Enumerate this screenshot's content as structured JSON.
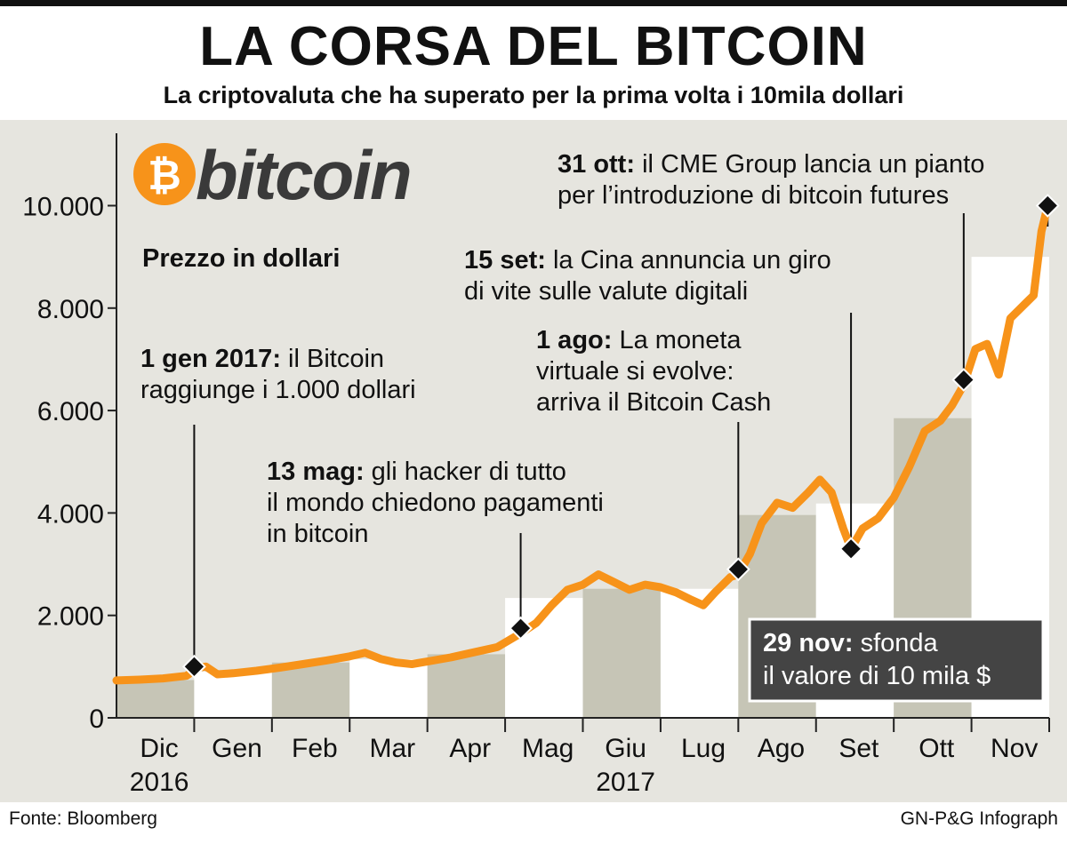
{
  "header": {
    "title": "LA CORSA DEL BITCOIN",
    "subtitle": "La criptovaluta che ha superato per la prima volta i 10mila dollari"
  },
  "logo": {
    "symbol": "₿",
    "word": "bitcoin",
    "color": "#F7931A"
  },
  "price_label": "Prezzo in dollari",
  "footer": {
    "source": "Fonte: Bloomberg",
    "credit": "GN-P&G Infograph"
  },
  "colors": {
    "line": "#F7931A",
    "background": "#E6E5DF",
    "band_dark": "#C6C5B6",
    "band_light": "#FFFFFF",
    "callout": "#444444"
  },
  "chart_data": {
    "type": "line",
    "title": "LA CORSA DEL BITCOIN",
    "ylabel": "Prezzo in dollari",
    "ylim": [
      0,
      11500
    ],
    "yticks": [
      0,
      2000,
      4000,
      6000,
      8000,
      10000
    ],
    "ytick_labels": [
      "0",
      "2.000",
      "4.000",
      "6.000",
      "8.000",
      "10.000"
    ],
    "xlim": [
      0,
      12
    ],
    "months": [
      {
        "label": "Dic",
        "year": "2016"
      },
      {
        "label": "Gen",
        "year": ""
      },
      {
        "label": "Feb",
        "year": ""
      },
      {
        "label": "Mar",
        "year": ""
      },
      {
        "label": "Apr",
        "year": ""
      },
      {
        "label": "Mag",
        "year": ""
      },
      {
        "label": "Giu",
        "year": "2017"
      },
      {
        "label": "Lug",
        "year": ""
      },
      {
        "label": "Ago",
        "year": ""
      },
      {
        "label": "Set",
        "year": ""
      },
      {
        "label": "Ott",
        "year": ""
      },
      {
        "label": "Nov",
        "year": ""
      }
    ],
    "series": [
      {
        "points": [
          [
            0.0,
            730
          ],
          [
            0.3,
            745
          ],
          [
            0.6,
            770
          ],
          [
            0.9,
            820
          ],
          [
            1.05,
            980
          ],
          [
            1.15,
            1000
          ],
          [
            1.3,
            850
          ],
          [
            1.5,
            870
          ],
          [
            1.8,
            920
          ],
          [
            2.1,
            980
          ],
          [
            2.4,
            1050
          ],
          [
            2.7,
            1120
          ],
          [
            3.0,
            1200
          ],
          [
            3.2,
            1270
          ],
          [
            3.4,
            1150
          ],
          [
            3.6,
            1080
          ],
          [
            3.8,
            1050
          ],
          [
            4.0,
            1100
          ],
          [
            4.3,
            1180
          ],
          [
            4.6,
            1280
          ],
          [
            4.9,
            1380
          ],
          [
            5.2,
            1650
          ],
          [
            5.4,
            1850
          ],
          [
            5.6,
            2200
          ],
          [
            5.8,
            2500
          ],
          [
            6.0,
            2600
          ],
          [
            6.2,
            2800
          ],
          [
            6.4,
            2650
          ],
          [
            6.6,
            2500
          ],
          [
            6.8,
            2600
          ],
          [
            7.0,
            2550
          ],
          [
            7.2,
            2450
          ],
          [
            7.4,
            2300
          ],
          [
            7.55,
            2200
          ],
          [
            7.7,
            2450
          ],
          [
            7.9,
            2750
          ],
          [
            8.0,
            2800
          ],
          [
            8.15,
            3200
          ],
          [
            8.3,
            3800
          ],
          [
            8.5,
            4200
          ],
          [
            8.7,
            4100
          ],
          [
            8.9,
            4400
          ],
          [
            9.05,
            4650
          ],
          [
            9.2,
            4400
          ],
          [
            9.35,
            3700
          ],
          [
            9.45,
            3300
          ],
          [
            9.6,
            3700
          ],
          [
            9.8,
            3900
          ],
          [
            10.0,
            4300
          ],
          [
            10.2,
            4900
          ],
          [
            10.4,
            5600
          ],
          [
            10.6,
            5800
          ],
          [
            10.75,
            6100
          ],
          [
            10.9,
            6500
          ],
          [
            11.05,
            7200
          ],
          [
            11.2,
            7300
          ],
          [
            11.35,
            6700
          ],
          [
            11.5,
            7800
          ],
          [
            11.7,
            8100
          ],
          [
            11.8,
            8250
          ],
          [
            11.9,
            9500
          ],
          [
            11.98,
            10000
          ]
        ]
      }
    ],
    "annotations": [
      {
        "x": 1.0,
        "y": 1000,
        "date": "1 gen 2017:",
        "lines": [
          "il Bitcoin",
          "raggiunge i 1.000 dollari"
        ]
      },
      {
        "x": 5.2,
        "y": 1750,
        "date": "13 mag:",
        "lines": [
          "gli hacker di tutto",
          "il mondo chiedono pagamenti",
          "in bitcoin"
        ]
      },
      {
        "x": 8.0,
        "y": 2900,
        "date": "1 ago:",
        "lines": [
          "La moneta",
          "virtuale si evolve:",
          "arriva il Bitcoin Cash"
        ]
      },
      {
        "x": 9.45,
        "y": 3300,
        "date": "15 set:",
        "lines": [
          "la Cina annuncia un giro",
          "di vite sulle valute digitali"
        ]
      },
      {
        "x": 10.9,
        "y": 6600,
        "date": "31 ott:",
        "lines": [
          "il CME Group lancia un pianto",
          "per l’introduzione di bitcoin futures"
        ]
      },
      {
        "x": 11.98,
        "y": 10000,
        "date": "29 nov:",
        "lines": [
          "sfonda",
          "il valore di 10 mila $"
        ]
      }
    ]
  }
}
